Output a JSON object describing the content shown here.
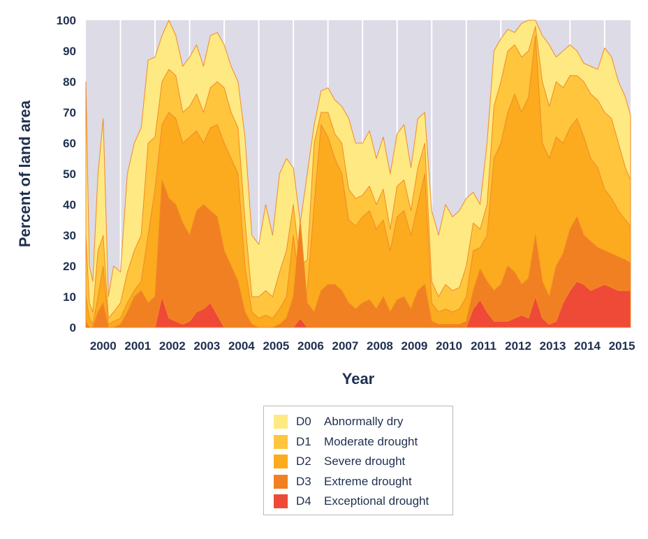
{
  "chart_data": {
    "type": "area",
    "xlabel": "Year",
    "ylabel": "Percent of land area",
    "ylim": [
      0,
      100
    ],
    "yticks": [
      0,
      10,
      20,
      30,
      40,
      50,
      60,
      70,
      80,
      90,
      100
    ],
    "categories": [
      "2000",
      "2001",
      "2002",
      "2003",
      "2004",
      "2005",
      "2006",
      "2007",
      "2008",
      "2009",
      "2010",
      "2011",
      "2012",
      "2013",
      "2014",
      "2015"
    ],
    "x": [
      2000.0,
      2000.1,
      2000.2,
      2000.35,
      2000.5,
      2000.65,
      2000.8,
      2001.0,
      2001.2,
      2001.4,
      2001.6,
      2001.8,
      2002.0,
      2002.2,
      2002.4,
      2002.6,
      2002.8,
      2003.0,
      2003.2,
      2003.4,
      2003.6,
      2003.8,
      2004.0,
      2004.2,
      2004.4,
      2004.6,
      2004.8,
      2005.0,
      2005.2,
      2005.4,
      2005.6,
      2005.8,
      2006.0,
      2006.2,
      2006.4,
      2006.6,
      2006.8,
      2007.0,
      2007.2,
      2007.4,
      2007.6,
      2007.8,
      2008.0,
      2008.2,
      2008.4,
      2008.6,
      2008.8,
      2009.0,
      2009.2,
      2009.4,
      2009.6,
      2009.8,
      2010.0,
      2010.2,
      2010.4,
      2010.6,
      2010.8,
      2011.0,
      2011.2,
      2011.4,
      2011.6,
      2011.8,
      2012.0,
      2012.2,
      2012.4,
      2012.6,
      2012.8,
      2013.0,
      2013.2,
      2013.4,
      2013.6,
      2013.8,
      2014.0,
      2014.2,
      2014.4,
      2014.6,
      2014.8,
      2015.0,
      2015.2,
      2015.4,
      2015.6,
      2015.75
    ],
    "series": [
      {
        "name": "D0  Abnormally dry",
        "color": "#ffe982",
        "values": [
          80,
          20,
          15,
          50,
          68,
          10,
          20,
          18,
          50,
          60,
          65,
          87,
          88,
          95,
          100,
          95,
          85,
          88,
          92,
          85,
          95,
          96,
          92,
          85,
          80,
          62,
          30,
          27,
          40,
          30,
          50,
          55,
          52,
          34,
          50,
          66,
          77,
          78,
          74,
          72,
          68,
          60,
          60,
          64,
          55,
          62,
          50,
          63,
          66,
          52,
          68,
          70,
          38,
          30,
          40,
          36,
          38,
          42,
          44,
          40,
          60,
          90,
          94,
          97,
          96,
          99,
          100,
          100,
          95,
          92,
          88,
          90,
          92,
          90,
          86,
          85,
          84,
          91,
          88,
          80,
          75,
          69
        ]
      },
      {
        "name": "D1  Moderate drought",
        "color": "#ffc53d",
        "values": [
          30,
          8,
          5,
          25,
          30,
          3,
          5,
          8,
          18,
          25,
          30,
          60,
          62,
          80,
          84,
          82,
          70,
          72,
          76,
          70,
          78,
          80,
          78,
          70,
          65,
          35,
          10,
          10,
          12,
          10,
          18,
          25,
          40,
          20,
          22,
          60,
          70,
          70,
          63,
          60,
          45,
          42,
          43,
          46,
          40,
          45,
          32,
          46,
          48,
          38,
          52,
          60,
          15,
          10,
          14,
          12,
          13,
          20,
          34,
          32,
          40,
          72,
          80,
          90,
          92,
          88,
          90,
          98,
          80,
          72,
          80,
          78,
          82,
          82,
          80,
          76,
          74,
          70,
          68,
          60,
          52,
          48
        ]
      },
      {
        "name": "D2  Severe drought",
        "color": "#fbab1d",
        "values": [
          10,
          3,
          1,
          10,
          20,
          1,
          2,
          3,
          8,
          12,
          15,
          30,
          45,
          66,
          70,
          68,
          60,
          62,
          64,
          60,
          65,
          66,
          60,
          55,
          50,
          20,
          5,
          3,
          4,
          3,
          6,
          10,
          30,
          12,
          12,
          40,
          66,
          62,
          55,
          50,
          35,
          33,
          36,
          38,
          32,
          35,
          25,
          36,
          38,
          30,
          40,
          50,
          8,
          5,
          6,
          5,
          6,
          10,
          25,
          26,
          30,
          55,
          60,
          70,
          76,
          70,
          75,
          95,
          60,
          55,
          62,
          60,
          65,
          68,
          62,
          55,
          52,
          45,
          42,
          38,
          35,
          33
        ]
      },
      {
        "name": "D3  Extreme drought",
        "color": "#f18022",
        "values": [
          2,
          0,
          0,
          5,
          8,
          0,
          0,
          1,
          5,
          10,
          12,
          8,
          10,
          48,
          42,
          40,
          34,
          30,
          38,
          40,
          38,
          36,
          25,
          20,
          15,
          5,
          1,
          0,
          0,
          0,
          1,
          3,
          10,
          35,
          8,
          5,
          12,
          14,
          14,
          12,
          8,
          6,
          8,
          9,
          6,
          10,
          5,
          9,
          10,
          6,
          12,
          14,
          2,
          1,
          1,
          1,
          1,
          2,
          12,
          19,
          15,
          12,
          14,
          20,
          18,
          14,
          16,
          30,
          15,
          10,
          20,
          24,
          32,
          36,
          30,
          28,
          26,
          25,
          24,
          23,
          22,
          21
        ]
      },
      {
        "name": "D4  Exceptional drought",
        "color": "#ee4a37",
        "values": [
          0,
          0,
          0,
          0,
          0,
          0,
          0,
          0,
          0,
          0,
          0,
          0,
          0,
          10,
          3,
          2,
          1,
          2,
          5,
          6,
          8,
          4,
          0,
          0,
          0,
          0,
          0,
          0,
          0,
          0,
          0,
          0,
          0,
          3,
          0,
          0,
          0,
          0,
          0,
          0,
          0,
          0,
          0,
          0,
          0,
          0,
          0,
          0,
          0,
          0,
          0,
          0,
          0,
          0,
          0,
          0,
          0,
          0,
          6,
          9,
          5,
          2,
          2,
          2,
          3,
          4,
          3,
          10,
          3,
          1,
          2,
          8,
          12,
          15,
          14,
          12,
          13,
          14,
          13,
          12,
          12,
          12
        ]
      }
    ],
    "grid": true,
    "legend_position": "bottom-center"
  }
}
